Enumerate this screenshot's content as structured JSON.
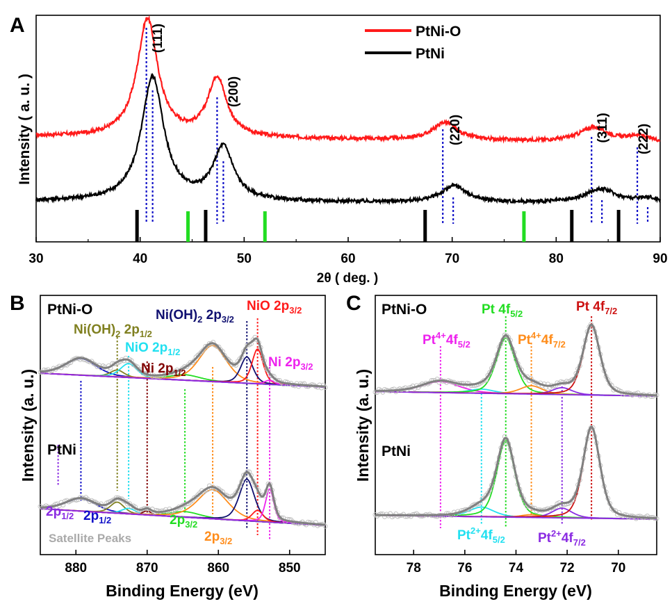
{
  "colors": {
    "red": "#ff1a1a",
    "black": "#000000",
    "blue": "#1010c8",
    "green": "#22dd22",
    "grey": "#808080",
    "navy": "#101070",
    "olive": "#808020",
    "cyan": "#22e0f0",
    "maroon": "#800000",
    "orange": "#ff8c1a",
    "magenta": "#ee22ee",
    "purple": "#8a2be2",
    "darkred": "#cc1111"
  },
  "panels": {
    "A": {
      "letter": "A",
      "xlabel": "2θ ( deg. )",
      "ylabel": "Intensity ( a. u. )"
    },
    "B": {
      "letter": "B",
      "xlabel": "Binding Energy (eV)",
      "ylabel": "Intensity (a. u.)"
    },
    "C": {
      "letter": "C",
      "xlabel": "Binding Energy (eV)",
      "ylabel": "Intensity (a. u.)"
    }
  },
  "chart_data": [
    {
      "panel": "A",
      "type": "line",
      "xlabel": "2θ ( deg. )",
      "ylabel": "Intensity ( a. u. )",
      "xlim": [
        30,
        90
      ],
      "xticks": [
        "30",
        "40",
        "50",
        "60",
        "70",
        "80",
        "90"
      ],
      "legend": {
        "placement": "top-right",
        "entries": [
          "PtNi-O",
          "PtNi"
        ]
      },
      "series": [
        {
          "name": "PtNi-O",
          "color": "red",
          "offset": 1.4,
          "peaks": [
            [
              40.7,
              1.0,
              1.2
            ],
            [
              47.4,
              0.5,
              1.1
            ],
            [
              69.3,
              0.15,
              1.4
            ],
            [
              83.6,
              0.12,
              1.6
            ],
            [
              87.9,
              0.05,
              1.2
            ]
          ],
          "baseline": 0.05
        },
        {
          "name": "PtNi",
          "color": "black",
          "offset": 0.0,
          "peaks": [
            [
              41.2,
              1.05,
              1.3
            ],
            [
              48.0,
              0.45,
              1.2
            ],
            [
              70.2,
              0.14,
              1.5
            ],
            [
              84.3,
              0.12,
              1.8
            ],
            [
              88.8,
              0.04,
              1.2
            ]
          ],
          "baseline": 0.02
        }
      ],
      "reflections": [
        {
          "label": "(111)",
          "x_red": 40.6,
          "x_black": 41.2
        },
        {
          "label": "(200)",
          "x_red": 47.4,
          "x_black": 48.0
        },
        {
          "label": "(220)",
          "x_red": 69.1,
          "x_black": 70.1
        },
        {
          "label": "(311)",
          "x_red": 83.4,
          "x_black": 84.4
        },
        {
          "label": "(222)",
          "x_red": 87.8,
          "x_black": 88.8
        }
      ],
      "reference_black": [
        39.7,
        46.3,
        67.4,
        81.5,
        86.0
      ],
      "reference_green": [
        44.6,
        52.0,
        76.9
      ]
    },
    {
      "panel": "B",
      "type": "line",
      "xlabel": "Binding Energy (eV)",
      "ylabel": "Intensity (a. u.)",
      "xlim": [
        885,
        845
      ],
      "xticks": [
        "880",
        "870",
        "860",
        "850"
      ],
      "labels": {
        "sampleTop": "PtNi-O",
        "sampleBottom": "PtNi",
        "niOH2_12": "Ni(OH)",
        "niOH2_12_sub": "2",
        "niOH2_12_tail": " 2p",
        "niOH2_12_tailsub": "1/2",
        "niOH2_32": "Ni(OH)",
        "niOH2_32_sub": "2",
        "niOH2_32_tail": " 2p",
        "niOH2_32_tailsub": "3/2",
        "nio_32": "NiO 2p",
        "nio_32_sub": "3/2",
        "nio_12": "NiO 2p",
        "nio_12_sub": "1/2",
        "ni_12": "Ni 2p",
        "ni_12_sub": "1/2",
        "ni_32": "Ni 2p",
        "ni_32_sub": "3/2",
        "p12a": "2p",
        "p12a_sub": "1/2",
        "p12b": "2p",
        "p12b_sub": "1/2",
        "p32a": "2p",
        "p32a_sub": "3/2",
        "p32b": "2p",
        "p32b_sub": "3/2",
        "satellite": "Satellite Peaks"
      },
      "dotted_markers": [
        {
          "x": 882.5,
          "color": "purple"
        },
        {
          "x": 879.3,
          "color": "blue"
        },
        {
          "x": 874.2,
          "color": "olive"
        },
        {
          "x": 872.6,
          "color": "cyan"
        },
        {
          "x": 870.0,
          "color": "maroon"
        },
        {
          "x": 864.7,
          "color": "green"
        },
        {
          "x": 860.8,
          "color": "orange"
        },
        {
          "x": 856.0,
          "color": "navy"
        },
        {
          "x": 854.5,
          "color": "red"
        },
        {
          "x": 852.8,
          "color": "magenta"
        }
      ]
    },
    {
      "panel": "C",
      "type": "line",
      "xlabel": "Binding Energy (eV)",
      "ylabel": "Intensity (a. u.)",
      "xlim": [
        79.5,
        68.5
      ],
      "xticks": [
        "78",
        "76",
        "74",
        "72",
        "70"
      ],
      "labels": {
        "sampleTop": "PtNi-O",
        "sampleBottom": "PtNi",
        "pt52": "Pt 4f",
        "pt52_sub": "5/2",
        "pt72": "Pt 4f",
        "pt72_sub": "7/2",
        "pt4_52": "Pt",
        "pt4_52_sup": "4+",
        "pt4_52_tail": "4f",
        "pt4_52_sub": "5/2",
        "pt4_72": "Pt",
        "pt4_72_sup": "4+",
        "pt4_72_tail": "4f",
        "pt4_72_sub": "7/2",
        "pt2_52": "Pt",
        "pt2_52_sup": "2+",
        "pt2_52_tail": "4f",
        "pt2_52_sub": "5/2",
        "pt2_72": "Pt",
        "pt2_72_sup": "2+",
        "pt2_72_tail": "4f",
        "pt2_72_sub": "7/2"
      },
      "dotted_markers": [
        {
          "x": 76.95,
          "color": "magenta"
        },
        {
          "x": 75.35,
          "color": "cyan"
        },
        {
          "x": 74.4,
          "color": "green"
        },
        {
          "x": 73.4,
          "color": "orange"
        },
        {
          "x": 72.2,
          "color": "purple"
        },
        {
          "x": 71.05,
          "color": "darkred"
        }
      ]
    }
  ]
}
